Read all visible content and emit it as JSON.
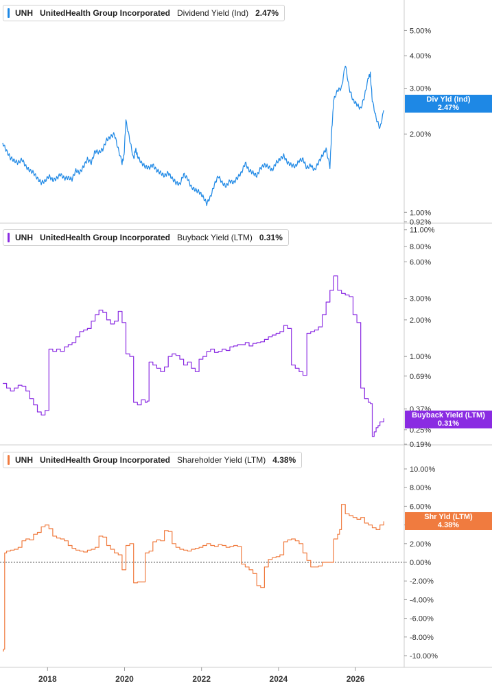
{
  "colors": {
    "dividend": "#1e88e5",
    "buyback": "#8a2be2",
    "shareholder": "#f07b3f",
    "axis": "#cccccc",
    "text": "#333333"
  },
  "chart_data": [
    {
      "type": "line",
      "scale": "log",
      "legend": {
        "ticker": "UNH",
        "company": "UnitedHealth Group Incorporated",
        "metric": "Dividend Yield (Ind)",
        "value": "2.47%"
      },
      "tag": {
        "name": "Div Yld (Ind)",
        "value": "2.47%"
      },
      "yticks": [
        "5.00%",
        "4.00%",
        "3.00%",
        "2.00%",
        "1.00%",
        "0.92%"
      ],
      "ytick_values": [
        5.0,
        4.0,
        3.0,
        2.0,
        1.0,
        0.92
      ],
      "ylim": [
        0.92,
        5.8
      ],
      "series": [
        {
          "x": [
            2016.8,
            2016.9,
            2017.0,
            2017.1,
            2017.2,
            2017.3,
            2017.4,
            2017.5,
            2017.6,
            2017.7,
            2017.8,
            2017.9,
            2018.0,
            2018.1,
            2018.2,
            2018.3,
            2018.4,
            2018.5,
            2018.6,
            2018.7,
            2018.8,
            2018.9,
            2019.0,
            2019.1,
            2019.2,
            2019.3,
            2019.4,
            2019.5,
            2019.6,
            2019.7,
            2019.8,
            2019.9,
            2019.95,
            2020.0,
            2020.1,
            2020.2,
            2020.25,
            2020.3,
            2020.4,
            2020.5,
            2020.6,
            2020.7,
            2020.8,
            2020.9,
            2021.0,
            2021.1,
            2021.2,
            2021.3,
            2021.4,
            2021.5,
            2021.6,
            2021.7,
            2021.8,
            2021.9,
            2022.0,
            2022.1,
            2022.2,
            2022.3,
            2022.4,
            2022.5,
            2022.6,
            2022.7,
            2022.8,
            2022.9,
            2023.0,
            2023.1,
            2023.2,
            2023.3,
            2023.4,
            2023.5,
            2023.6,
            2023.7,
            2023.8,
            2023.9,
            2024.0,
            2024.1,
            2024.2,
            2024.3,
            2024.4,
            2024.5,
            2024.6,
            2024.7,
            2024.8,
            2024.9,
            2025.0,
            2025.1,
            2025.2,
            2025.3,
            2025.35,
            2025.4,
            2025.5,
            2025.6,
            2025.7,
            2025.8,
            2025.9,
            2026.0,
            2026.1,
            2026.2,
            2026.3,
            2026.35,
            2026.4,
            2026.5,
            2026.6,
            2026.7
          ],
          "values": [
            1.85,
            1.72,
            1.62,
            1.58,
            1.55,
            1.6,
            1.5,
            1.45,
            1.42,
            1.35,
            1.3,
            1.32,
            1.38,
            1.33,
            1.35,
            1.4,
            1.35,
            1.36,
            1.34,
            1.45,
            1.42,
            1.5,
            1.6,
            1.55,
            1.72,
            1.7,
            1.75,
            1.9,
            1.95,
            2.0,
            1.75,
            1.55,
            1.65,
            2.25,
            1.9,
            1.6,
            1.75,
            1.65,
            1.55,
            1.5,
            1.48,
            1.52,
            1.45,
            1.42,
            1.38,
            1.42,
            1.35,
            1.3,
            1.28,
            1.4,
            1.35,
            1.25,
            1.22,
            1.2,
            1.15,
            1.08,
            1.15,
            1.28,
            1.38,
            1.3,
            1.26,
            1.32,
            1.3,
            1.36,
            1.42,
            1.55,
            1.45,
            1.42,
            1.38,
            1.48,
            1.52,
            1.5,
            1.45,
            1.55,
            1.6,
            1.65,
            1.55,
            1.52,
            1.5,
            1.58,
            1.6,
            1.48,
            1.52,
            1.45,
            1.55,
            1.65,
            1.75,
            1.5,
            2.1,
            2.7,
            2.95,
            3.0,
            3.7,
            3.0,
            2.7,
            2.6,
            2.5,
            2.8,
            3.3,
            3.4,
            2.7,
            2.3,
            2.1,
            2.47
          ]
        }
      ]
    },
    {
      "type": "line",
      "scale": "log",
      "legend": {
        "ticker": "UNH",
        "company": "UnitedHealth Group Incorporated",
        "metric": "Buyback Yield (LTM)",
        "value": "0.31%"
      },
      "tag": {
        "name": "Buyback Yield (LTM)",
        "value": "0.31%"
      },
      "yticks": [
        "11.00%",
        "8.00%",
        "6.00%",
        "3.00%",
        "2.00%",
        "1.00%",
        "0.69%",
        "0.37%",
        "0.25%",
        "0.19%"
      ],
      "ytick_values": [
        11.0,
        8.0,
        6.0,
        3.0,
        2.0,
        1.0,
        0.69,
        0.37,
        0.25,
        0.19
      ],
      "ylim": [
        0.19,
        12.0
      ],
      "series": [
        {
          "x": [
            2016.8,
            2016.9,
            2017.0,
            2017.1,
            2017.2,
            2017.3,
            2017.4,
            2017.5,
            2017.6,
            2017.7,
            2017.8,
            2017.9,
            2018.0,
            2018.1,
            2018.2,
            2018.3,
            2018.4,
            2018.5,
            2018.6,
            2018.7,
            2018.8,
            2018.9,
            2019.0,
            2019.1,
            2019.2,
            2019.3,
            2019.4,
            2019.5,
            2019.6,
            2019.7,
            2019.8,
            2019.9,
            2020.0,
            2020.1,
            2020.2,
            2020.3,
            2020.4,
            2020.5,
            2020.55,
            2020.6,
            2020.7,
            2020.8,
            2020.9,
            2021.0,
            2021.1,
            2021.2,
            2021.3,
            2021.4,
            2021.5,
            2021.6,
            2021.7,
            2021.8,
            2021.9,
            2022.0,
            2022.1,
            2022.2,
            2022.3,
            2022.4,
            2022.5,
            2022.6,
            2022.7,
            2022.8,
            2022.9,
            2023.0,
            2023.1,
            2023.2,
            2023.3,
            2023.4,
            2023.5,
            2023.6,
            2023.7,
            2023.8,
            2023.9,
            2024.0,
            2024.1,
            2024.2,
            2024.3,
            2024.4,
            2024.5,
            2024.6,
            2024.7,
            2024.8,
            2024.9,
            2025.0,
            2025.1,
            2025.2,
            2025.3,
            2025.4,
            2025.5,
            2025.6,
            2025.7,
            2025.8,
            2025.9,
            2026.0,
            2026.1,
            2026.2,
            2026.3,
            2026.35,
            2026.4,
            2026.45,
            2026.5,
            2026.55,
            2026.6,
            2026.7
          ],
          "values": [
            0.6,
            0.55,
            0.52,
            0.55,
            0.58,
            0.57,
            0.52,
            0.45,
            0.4,
            0.35,
            0.33,
            0.36,
            1.15,
            1.1,
            1.15,
            1.1,
            1.2,
            1.25,
            1.3,
            1.45,
            1.6,
            1.65,
            1.7,
            1.95,
            2.2,
            2.4,
            2.3,
            2.0,
            1.85,
            1.95,
            2.35,
            1.9,
            1.05,
            1.0,
            0.42,
            0.4,
            0.44,
            0.42,
            0.43,
            0.9,
            0.85,
            0.8,
            0.75,
            0.82,
            1.0,
            1.05,
            1.02,
            0.95,
            0.85,
            0.9,
            0.8,
            0.75,
            0.95,
            1.0,
            1.1,
            1.15,
            1.08,
            1.1,
            1.15,
            1.12,
            1.2,
            1.22,
            1.25,
            1.25,
            1.3,
            1.22,
            1.28,
            1.3,
            1.32,
            1.38,
            1.45,
            1.5,
            1.55,
            1.6,
            1.8,
            1.7,
            0.85,
            0.8,
            0.75,
            0.7,
            1.55,
            1.6,
            1.65,
            1.75,
            2.2,
            2.8,
            3.5,
            4.6,
            3.5,
            3.3,
            3.2,
            3.1,
            2.2,
            1.9,
            0.55,
            0.45,
            0.42,
            0.41,
            0.22,
            0.24,
            0.26,
            0.27,
            0.29,
            0.31
          ]
        }
      ]
    },
    {
      "type": "line",
      "scale": "linear",
      "legend": {
        "ticker": "UNH",
        "company": "UnitedHealth Group Incorporated",
        "metric": "Shareholder Yield (LTM)",
        "value": "4.38%"
      },
      "tag": {
        "name": "Shr Yld (LTM)",
        "value": "4.38%"
      },
      "yticks": [
        "10.00%",
        "8.00%",
        "6.00%",
        "4.00%",
        "2.00%",
        "0.00%",
        "-2.00%",
        "-4.00%",
        "-6.00%",
        "-8.00%",
        "-10.00%"
      ],
      "ytick_values": [
        10,
        8,
        6,
        4,
        2,
        0,
        -2,
        -4,
        -6,
        -8,
        -10
      ],
      "ylim": [
        -10,
        10
      ],
      "zero_line": true,
      "series": [
        {
          "x": [
            2016.8,
            2016.82,
            2016.85,
            2016.9,
            2017.0,
            2017.1,
            2017.2,
            2017.3,
            2017.4,
            2017.5,
            2017.6,
            2017.7,
            2017.8,
            2017.9,
            2018.0,
            2018.1,
            2018.2,
            2018.3,
            2018.4,
            2018.5,
            2018.6,
            2018.7,
            2018.8,
            2018.9,
            2019.0,
            2019.1,
            2019.2,
            2019.3,
            2019.4,
            2019.5,
            2019.6,
            2019.7,
            2019.8,
            2019.9,
            2020.0,
            2020.1,
            2020.2,
            2020.3,
            2020.4,
            2020.5,
            2020.6,
            2020.7,
            2020.8,
            2020.9,
            2021.0,
            2021.1,
            2021.2,
            2021.3,
            2021.4,
            2021.5,
            2021.6,
            2021.7,
            2021.8,
            2021.9,
            2022.0,
            2022.1,
            2022.2,
            2022.3,
            2022.4,
            2022.5,
            2022.6,
            2022.7,
            2022.8,
            2022.9,
            2023.0,
            2023.1,
            2023.2,
            2023.3,
            2023.4,
            2023.5,
            2023.6,
            2023.7,
            2023.8,
            2023.9,
            2024.0,
            2024.1,
            2024.2,
            2024.3,
            2024.4,
            2024.5,
            2024.6,
            2024.7,
            2024.8,
            2024.9,
            2025.0,
            2025.1,
            2025.2,
            2025.3,
            2025.4,
            2025.5,
            2025.55,
            2025.6,
            2025.7,
            2025.8,
            2025.9,
            2026.0,
            2026.1,
            2026.2,
            2026.3,
            2026.4,
            2026.5,
            2026.6,
            2026.7
          ],
          "values": [
            -9.5,
            -9.3,
            1.0,
            1.2,
            1.3,
            1.4,
            1.6,
            2.3,
            2.5,
            2.4,
            3.0,
            3.2,
            3.8,
            4.0,
            3.6,
            2.8,
            2.6,
            2.5,
            2.3,
            1.8,
            1.5,
            1.3,
            1.2,
            1.1,
            1.3,
            1.4,
            1.6,
            2.8,
            2.7,
            1.8,
            1.4,
            1.0,
            0.8,
            -0.8,
            1.8,
            2.0,
            -2.2,
            -2.1,
            -2.1,
            1.0,
            1.2,
            2.2,
            2.4,
            2.3,
            3.4,
            3.3,
            2.0,
            1.6,
            1.4,
            1.3,
            1.2,
            1.4,
            1.5,
            1.6,
            1.8,
            2.0,
            1.8,
            1.7,
            1.9,
            1.8,
            1.6,
            1.7,
            1.8,
            1.7,
            -0.2,
            -0.5,
            -0.8,
            -1.2,
            -2.5,
            -2.7,
            -0.5,
            0.3,
            0.5,
            0.6,
            0.8,
            2.2,
            2.4,
            2.5,
            2.3,
            2.0,
            1.0,
            0.2,
            -0.5,
            -0.5,
            -0.4,
            0.0,
            0.0,
            0.0,
            2.5,
            3.0,
            3.5,
            6.2,
            5.2,
            5.0,
            4.8,
            4.6,
            4.8,
            4.2,
            4.0,
            3.7,
            3.5,
            4.0,
            4.38
          ]
        }
      ]
    }
  ],
  "xaxis": {
    "ticks": [
      "2018",
      "2020",
      "2022",
      "2024",
      "2026"
    ],
    "tick_values": [
      2018,
      2020,
      2022,
      2024,
      2026
    ],
    "range": [
      2016.8,
      2027.3
    ]
  }
}
